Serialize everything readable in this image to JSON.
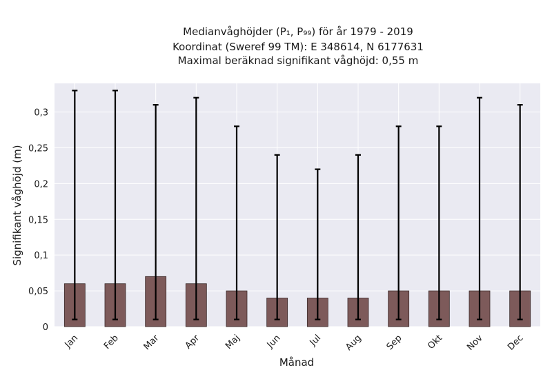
{
  "chart_data": {
    "type": "bar",
    "title_lines": [
      "Medianvåghöjder (P₁, P₉₉) för år 1979 - 2019",
      "Koordinat (Sweref 99 TM): E 348614, N 6177631",
      "Maximal beräknad signifikant våghöjd: 0,55 m"
    ],
    "xlabel": "Månad",
    "ylabel": "Signifikant våghöjd (m)",
    "categories": [
      "Jan",
      "Feb",
      "Mar",
      "Apr",
      "Maj",
      "Jun",
      "Jul",
      "Aug",
      "Sep",
      "Okt",
      "Nov",
      "Dec"
    ],
    "values": [
      0.06,
      0.06,
      0.07,
      0.06,
      0.05,
      0.04,
      0.04,
      0.04,
      0.05,
      0.05,
      0.05,
      0.05
    ],
    "p1": [
      0.01,
      0.01,
      0.01,
      0.01,
      0.01,
      0.01,
      0.01,
      0.01,
      0.01,
      0.01,
      0.01,
      0.01
    ],
    "p99": [
      0.33,
      0.33,
      0.31,
      0.32,
      0.28,
      0.24,
      0.22,
      0.24,
      0.28,
      0.28,
      0.32,
      0.31
    ],
    "ylim": [
      0,
      0.34
    ],
    "yticks": [
      0,
      0.05,
      0.1,
      0.15,
      0.2,
      0.25,
      0.3
    ],
    "ytick_labels": [
      "0",
      "0,05",
      "0,1",
      "0,15",
      "0,2",
      "0,25",
      "0,3"
    ],
    "grid": true,
    "colors": {
      "bar": "#7d5a5a",
      "bar_edge": "#3a2a2a",
      "errorbar": "#000000",
      "plot_bg": "#eaeaf2",
      "grid": "#ffffff"
    }
  }
}
